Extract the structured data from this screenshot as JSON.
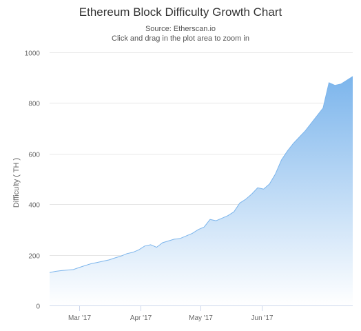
{
  "chart_data": {
    "type": "area",
    "title": "Ethereum Block Difficulty Growth Chart",
    "subtitle_lines": [
      "Source: Etherscan.io",
      "Click and drag in the plot area to zoom in"
    ],
    "ylabel": "Difficulty ( TH )",
    "xlabel": "",
    "x_range": [
      "2017-02-14",
      "2017-07-17"
    ],
    "ylim": [
      0,
      1000
    ],
    "y_ticks": [
      0,
      200,
      400,
      600,
      800,
      1000
    ],
    "x_ticks": [
      {
        "date": "2017-03-01",
        "label": "Mar '17"
      },
      {
        "date": "2017-04-01",
        "label": "Apr '17"
      },
      {
        "date": "2017-05-01",
        "label": "May '17"
      },
      {
        "date": "2017-06-01",
        "label": "Jun '17"
      }
    ],
    "grid": "horizontal",
    "legend": "none",
    "colors": {
      "line": "#7cb5ec",
      "fill_top": "#7cb5ec",
      "fill_bottom": "#ffffff",
      "grid": "#e6e6e6"
    },
    "x": [
      "2017-02-14",
      "2017-02-17",
      "2017-02-20",
      "2017-02-23",
      "2017-02-26",
      "2017-03-01",
      "2017-03-04",
      "2017-03-07",
      "2017-03-10",
      "2017-03-13",
      "2017-03-16",
      "2017-03-19",
      "2017-03-22",
      "2017-03-25",
      "2017-03-28",
      "2017-03-31",
      "2017-04-03",
      "2017-04-06",
      "2017-04-09",
      "2017-04-12",
      "2017-04-15",
      "2017-04-18",
      "2017-04-21",
      "2017-04-24",
      "2017-04-27",
      "2017-04-30",
      "2017-05-03",
      "2017-05-06",
      "2017-05-09",
      "2017-05-12",
      "2017-05-15",
      "2017-05-18",
      "2017-05-21",
      "2017-05-24",
      "2017-05-27",
      "2017-05-30",
      "2017-06-02",
      "2017-06-05",
      "2017-06-08",
      "2017-06-11",
      "2017-06-14",
      "2017-06-17",
      "2017-06-20",
      "2017-06-23",
      "2017-06-26",
      "2017-06-29",
      "2017-07-02",
      "2017-07-05",
      "2017-07-08",
      "2017-07-11",
      "2017-07-14",
      "2017-07-17"
    ],
    "values": [
      130,
      135,
      138,
      140,
      142,
      150,
      158,
      165,
      170,
      175,
      180,
      188,
      195,
      205,
      210,
      220,
      235,
      240,
      230,
      248,
      255,
      262,
      265,
      275,
      285,
      300,
      310,
      340,
      335,
      345,
      355,
      370,
      405,
      420,
      440,
      465,
      460,
      480,
      520,
      575,
      610,
      640,
      665,
      690,
      720,
      750,
      780,
      880,
      870,
      875,
      890,
      905
    ]
  }
}
